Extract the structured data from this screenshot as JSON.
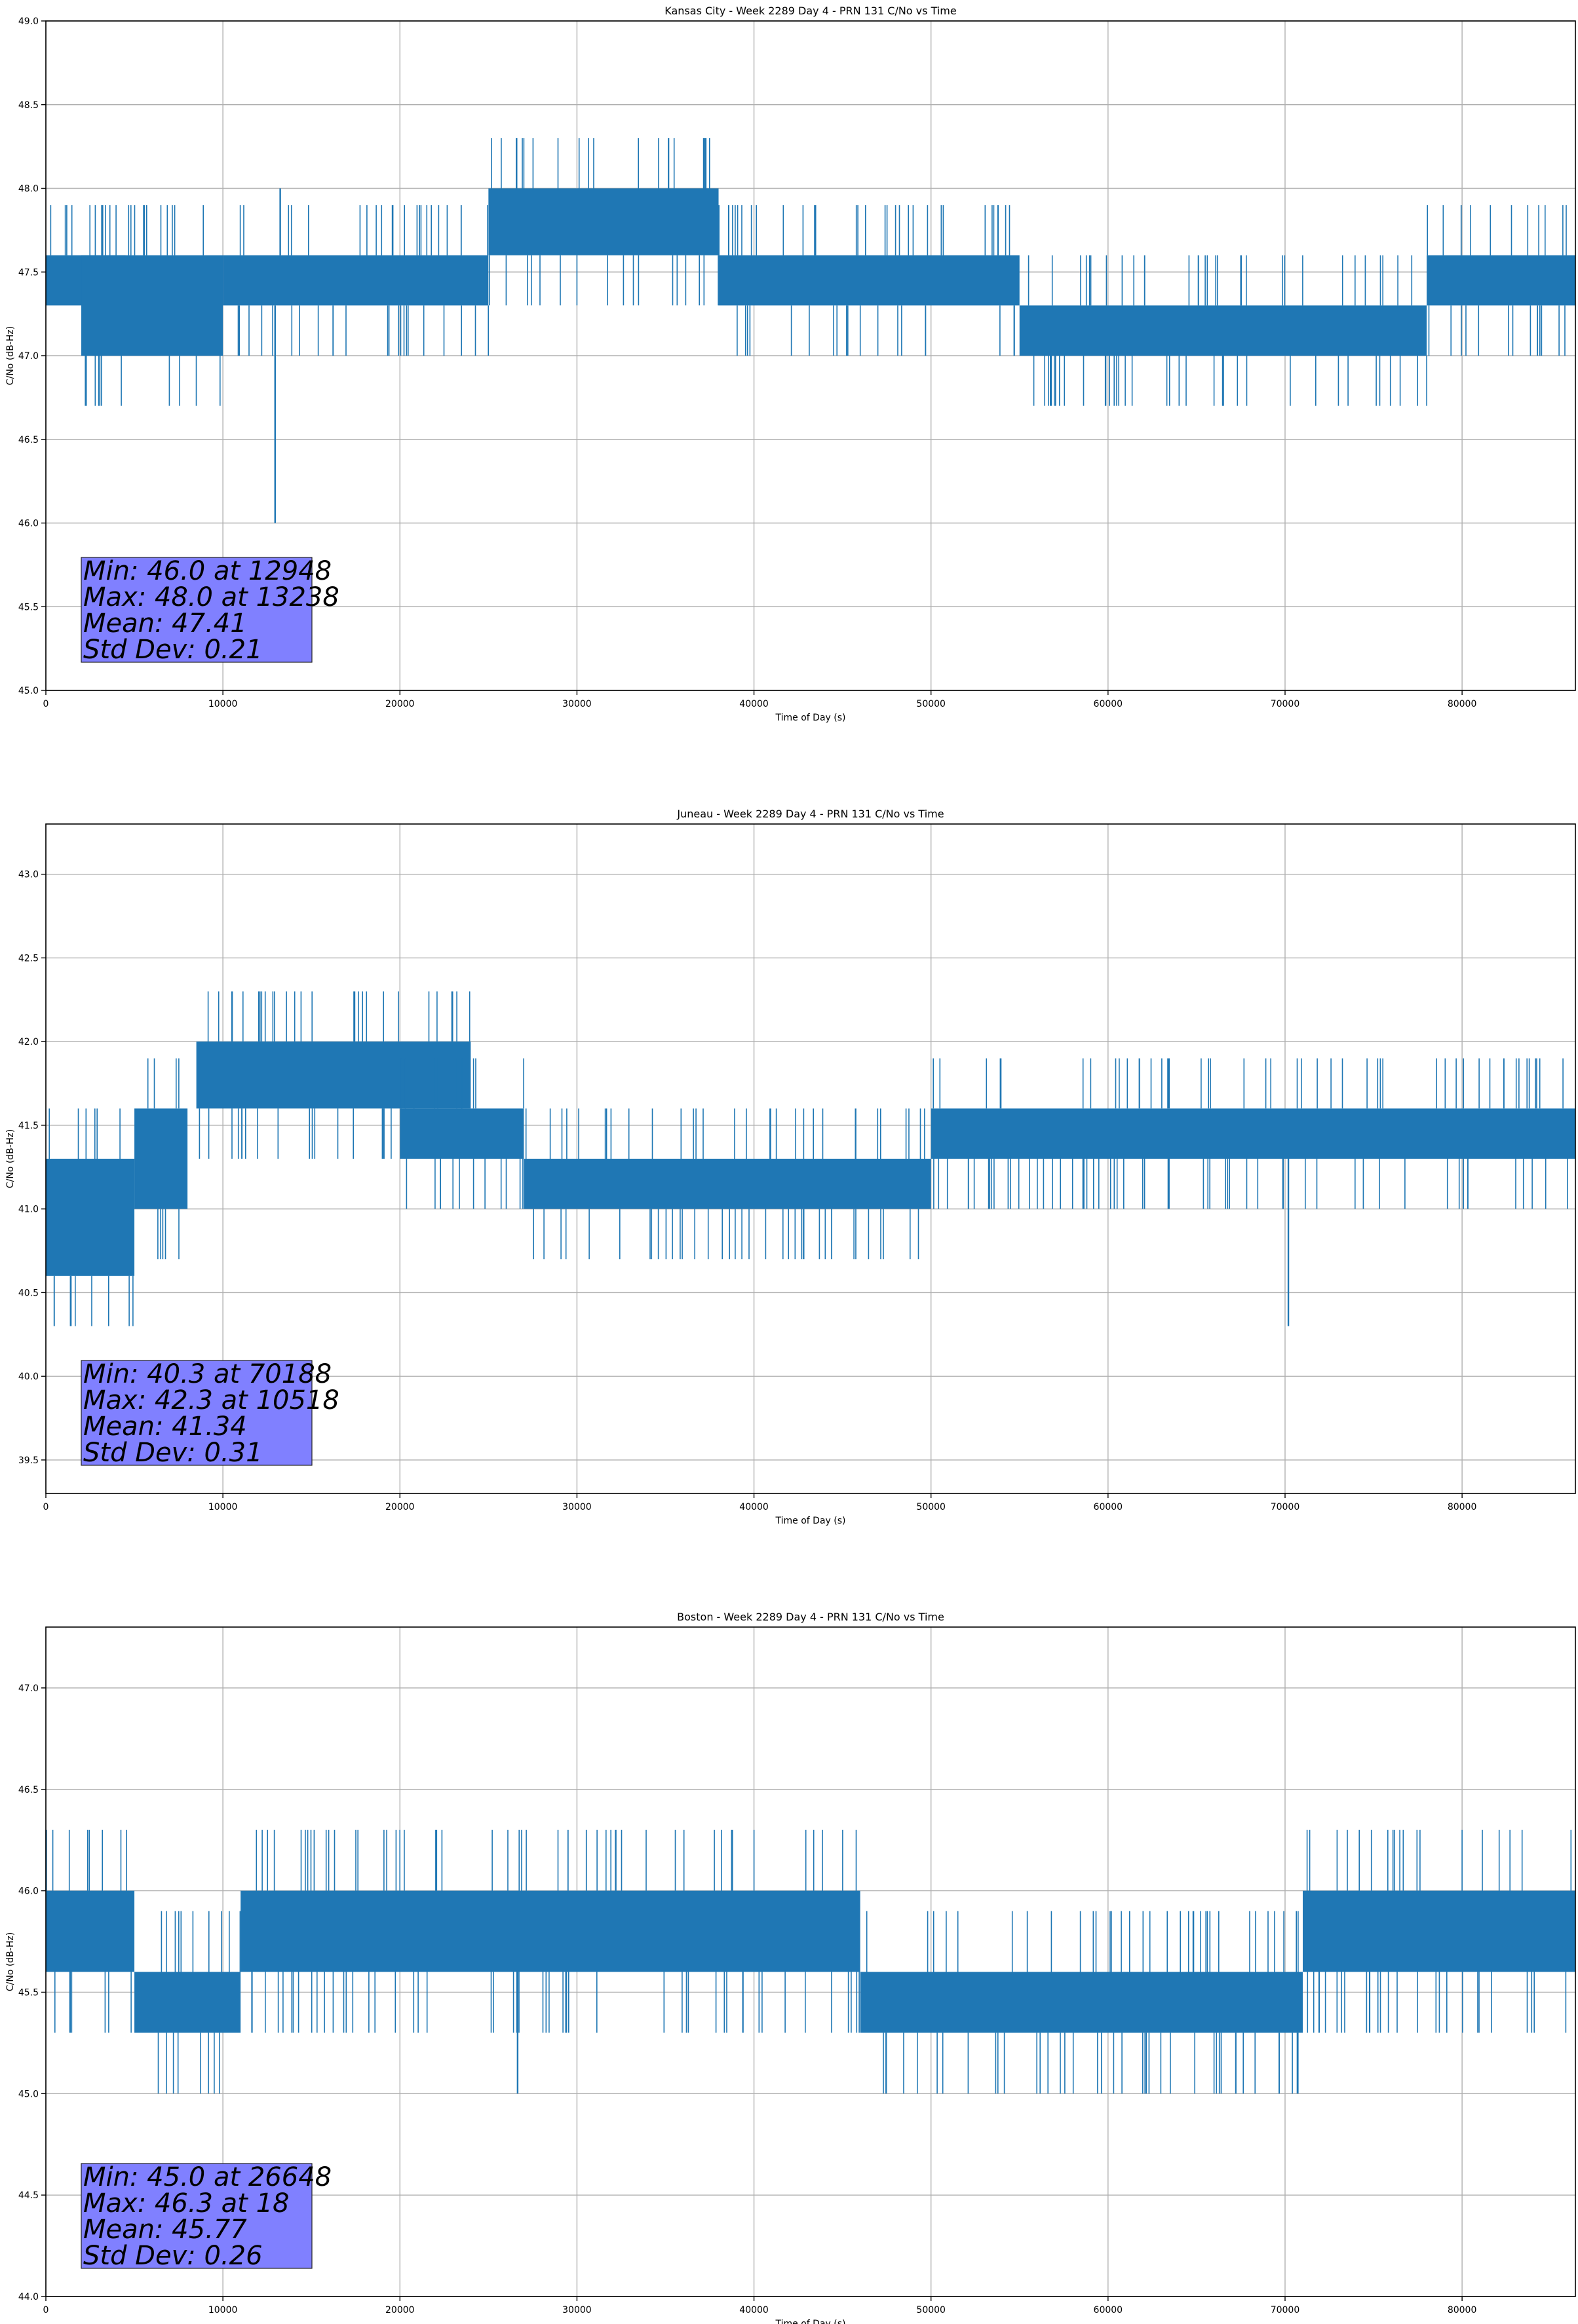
{
  "chart_data": [
    {
      "type": "line",
      "title": "Kansas City - Week 2289 Day 4 - PRN 131 C/No vs Time",
      "xlabel": "Time of Day (s)",
      "ylabel": "C/No (dB-Hz)",
      "xlim": [
        0,
        86400
      ],
      "ylim": [
        45.0,
        49.0
      ],
      "xticks": [
        0,
        10000,
        20000,
        30000,
        40000,
        50000,
        60000,
        70000,
        80000
      ],
      "yticks": [
        45.0,
        45.5,
        46.0,
        46.5,
        47.0,
        47.5,
        48.0,
        48.5,
        49.0
      ],
      "grid": true,
      "color": "#1f77b4",
      "segments": [
        {
          "x": [
            0,
            4500
          ],
          "low": 47.3,
          "high": 47.6
        },
        {
          "x": [
            2000,
            10000
          ],
          "low": 47.0,
          "high": 47.6
        },
        {
          "x": [
            10000,
            25000
          ],
          "low": 47.3,
          "high": 47.6
        },
        {
          "x": [
            25000,
            38000
          ],
          "low": 47.6,
          "high": 48.0
        },
        {
          "x": [
            38000,
            55000
          ],
          "low": 47.3,
          "high": 47.6
        },
        {
          "x": [
            55000,
            78000
          ],
          "low": 47.0,
          "high": 47.3
        },
        {
          "x": [
            78000,
            86400
          ],
          "low": 47.3,
          "high": 47.6
        }
      ],
      "stats": {
        "min_line": "Min: 46.0 at 12948",
        "max_line": "Max: 48.0 at 13238",
        "mean_line": "Mean: 47.41",
        "std_line": "Std Dev: 0.21"
      },
      "min": {
        "x": 12948,
        "y": 46.0
      },
      "max": {
        "x": 13238,
        "y": 48.0
      },
      "mean": 47.41,
      "std": 0.21
    },
    {
      "type": "line",
      "title": "Juneau - Week 2289 Day 4 - PRN 131 C/No vs Time",
      "xlabel": "Time of Day (s)",
      "ylabel": "C/No (dB-Hz)",
      "xlim": [
        0,
        86400
      ],
      "ylim": [
        39.3,
        43.3
      ],
      "xticks": [
        0,
        10000,
        20000,
        30000,
        40000,
        50000,
        60000,
        70000,
        80000
      ],
      "yticks": [
        39.5,
        40.0,
        40.5,
        41.0,
        41.5,
        42.0,
        42.5,
        43.0
      ],
      "grid": true,
      "color": "#1f77b4",
      "segments": [
        {
          "x": [
            0,
            5000
          ],
          "low": 40.6,
          "high": 41.3
        },
        {
          "x": [
            5000,
            8000
          ],
          "low": 41.0,
          "high": 41.6
        },
        {
          "x": [
            8500,
            24000
          ],
          "low": 41.6,
          "high": 42.0
        },
        {
          "x": [
            20000,
            27000
          ],
          "low": 41.3,
          "high": 41.6
        },
        {
          "x": [
            27000,
            50000
          ],
          "low": 41.0,
          "high": 41.3
        },
        {
          "x": [
            50000,
            86400
          ],
          "low": 41.3,
          "high": 41.6
        }
      ],
      "stats": {
        "min_line": "Min: 40.3 at 70188",
        "max_line": "Max: 42.3 at 10518",
        "mean_line": "Mean: 41.34",
        "std_line": "Std Dev: 0.31"
      },
      "min": {
        "x": 70188,
        "y": 40.3
      },
      "max": {
        "x": 10518,
        "y": 42.3
      },
      "mean": 41.34,
      "std": 0.31
    },
    {
      "type": "line",
      "title": "Boston - Week 2289 Day 4 - PRN 131 C/No vs Time",
      "xlabel": "Time of Day (s)",
      "ylabel": "C/No (dB-Hz)",
      "xlim": [
        0,
        86400
      ],
      "ylim": [
        44.0,
        47.3
      ],
      "xticks": [
        0,
        10000,
        20000,
        30000,
        40000,
        50000,
        60000,
        70000,
        80000
      ],
      "yticks": [
        44.0,
        44.5,
        45.0,
        45.5,
        46.0,
        46.5,
        47.0
      ],
      "grid": true,
      "color": "#1f77b4",
      "segments": [
        {
          "x": [
            0,
            5000
          ],
          "low": 45.6,
          "high": 46.0
        },
        {
          "x": [
            5000,
            11000
          ],
          "low": 45.3,
          "high": 45.6
        },
        {
          "x": [
            11000,
            46000
          ],
          "low": 45.6,
          "high": 46.0
        },
        {
          "x": [
            46000,
            71000
          ],
          "low": 45.3,
          "high": 45.6
        },
        {
          "x": [
            71000,
            86400
          ],
          "low": 45.6,
          "high": 46.0
        }
      ],
      "stats": {
        "min_line": "Min: 45.0 at 26648",
        "max_line": "Max: 46.3 at 18",
        "mean_line": "Mean: 45.77",
        "std_line": "Std Dev: 0.26"
      },
      "min": {
        "x": 26648,
        "y": 45.0
      },
      "max": {
        "x": 18,
        "y": 46.3
      },
      "mean": 45.77,
      "std": 0.26
    }
  ]
}
